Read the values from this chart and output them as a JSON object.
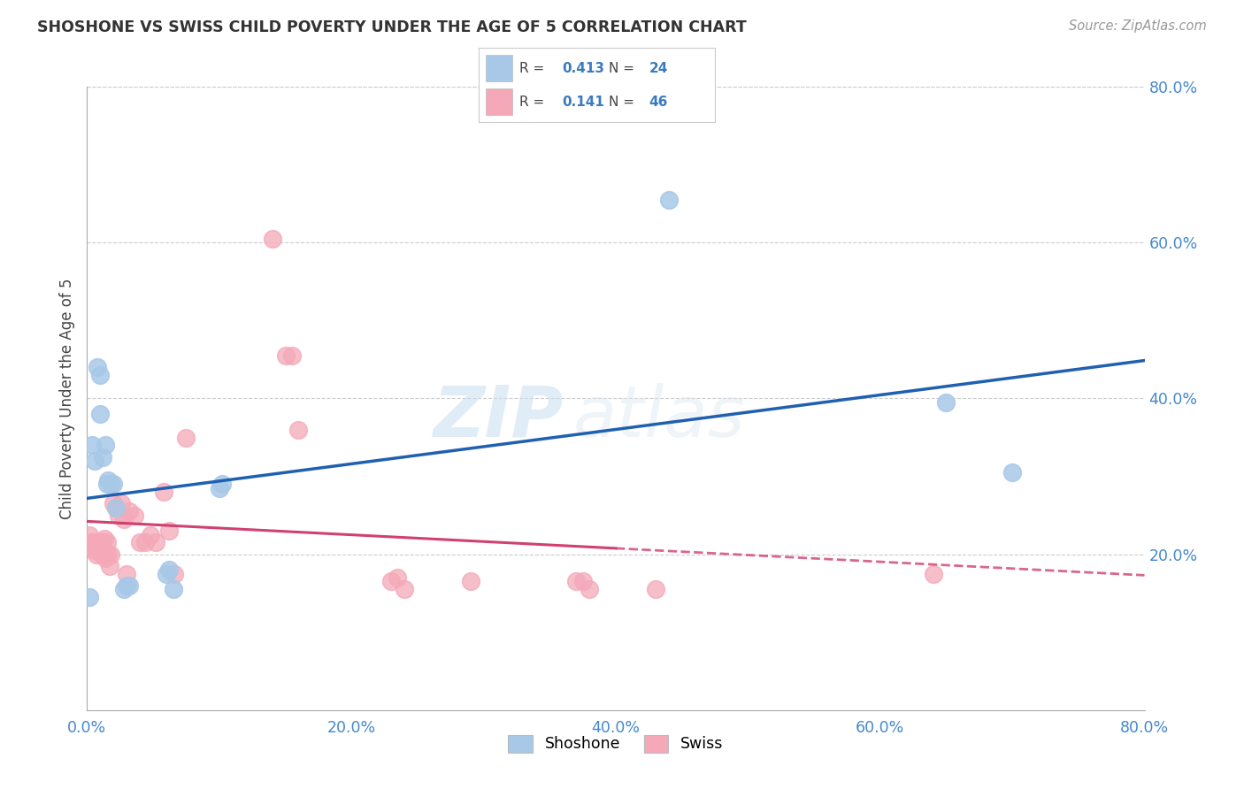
{
  "title": "SHOSHONE VS SWISS CHILD POVERTY UNDER THE AGE OF 5 CORRELATION CHART",
  "source": "Source: ZipAtlas.com",
  "ylabel": "Child Poverty Under the Age of 5",
  "xlim": [
    0.0,
    0.8
  ],
  "ylim": [
    0.0,
    0.8
  ],
  "xtick_labels": [
    "0.0%",
    "20.0%",
    "40.0%",
    "60.0%",
    "80.0%"
  ],
  "xtick_vals": [
    0.0,
    0.2,
    0.4,
    0.6,
    0.8
  ],
  "ytick_labels": [
    "20.0%",
    "40.0%",
    "60.0%",
    "80.0%"
  ],
  "ytick_vals": [
    0.2,
    0.4,
    0.6,
    0.8
  ],
  "shoshone_color": "#a8c8e8",
  "swiss_color": "#f4a8b8",
  "trend_shoshone_color": "#2060b0",
  "trend_swiss_color": "#d04070",
  "R_shoshone": "0.413",
  "N_shoshone": "24",
  "R_swiss": "0.141",
  "N_swiss": "46",
  "watermark_zip": "ZIP",
  "watermark_atlas": "atlas",
  "shoshone_points": [
    [
      0.004,
      0.34
    ],
    [
      0.006,
      0.32
    ],
    [
      0.008,
      0.44
    ],
    [
      0.01,
      0.43
    ],
    [
      0.01,
      0.38
    ],
    [
      0.012,
      0.325
    ],
    [
      0.014,
      0.34
    ],
    [
      0.015,
      0.29
    ],
    [
      0.016,
      0.295
    ],
    [
      0.018,
      0.29
    ],
    [
      0.02,
      0.29
    ],
    [
      0.022,
      0.26
    ],
    [
      0.028,
      0.155
    ],
    [
      0.03,
      0.16
    ],
    [
      0.032,
      0.16
    ],
    [
      0.06,
      0.175
    ],
    [
      0.062,
      0.18
    ],
    [
      0.065,
      0.155
    ],
    [
      0.1,
      0.285
    ],
    [
      0.102,
      0.29
    ],
    [
      0.44,
      0.655
    ],
    [
      0.65,
      0.395
    ],
    [
      0.7,
      0.305
    ],
    [
      0.002,
      0.145
    ]
  ],
  "swiss_points": [
    [
      0.002,
      0.225
    ],
    [
      0.003,
      0.215
    ],
    [
      0.004,
      0.21
    ],
    [
      0.005,
      0.215
    ],
    [
      0.006,
      0.205
    ],
    [
      0.007,
      0.2
    ],
    [
      0.008,
      0.21
    ],
    [
      0.009,
      0.205
    ],
    [
      0.01,
      0.215
    ],
    [
      0.011,
      0.2
    ],
    [
      0.012,
      0.215
    ],
    [
      0.013,
      0.22
    ],
    [
      0.014,
      0.195
    ],
    [
      0.015,
      0.215
    ],
    [
      0.016,
      0.2
    ],
    [
      0.017,
      0.185
    ],
    [
      0.018,
      0.2
    ],
    [
      0.02,
      0.265
    ],
    [
      0.022,
      0.26
    ],
    [
      0.024,
      0.25
    ],
    [
      0.026,
      0.265
    ],
    [
      0.028,
      0.245
    ],
    [
      0.03,
      0.175
    ],
    [
      0.032,
      0.255
    ],
    [
      0.036,
      0.25
    ],
    [
      0.04,
      0.215
    ],
    [
      0.044,
      0.215
    ],
    [
      0.048,
      0.225
    ],
    [
      0.052,
      0.215
    ],
    [
      0.058,
      0.28
    ],
    [
      0.062,
      0.23
    ],
    [
      0.066,
      0.175
    ],
    [
      0.075,
      0.35
    ],
    [
      0.14,
      0.605
    ],
    [
      0.15,
      0.455
    ],
    [
      0.155,
      0.455
    ],
    [
      0.16,
      0.36
    ],
    [
      0.23,
      0.165
    ],
    [
      0.235,
      0.17
    ],
    [
      0.24,
      0.155
    ],
    [
      0.29,
      0.165
    ],
    [
      0.37,
      0.165
    ],
    [
      0.375,
      0.165
    ],
    [
      0.38,
      0.155
    ],
    [
      0.43,
      0.155
    ],
    [
      0.64,
      0.175
    ]
  ],
  "trend_solid_xmax": 0.4,
  "trend_dashed_xmin": 0.4
}
